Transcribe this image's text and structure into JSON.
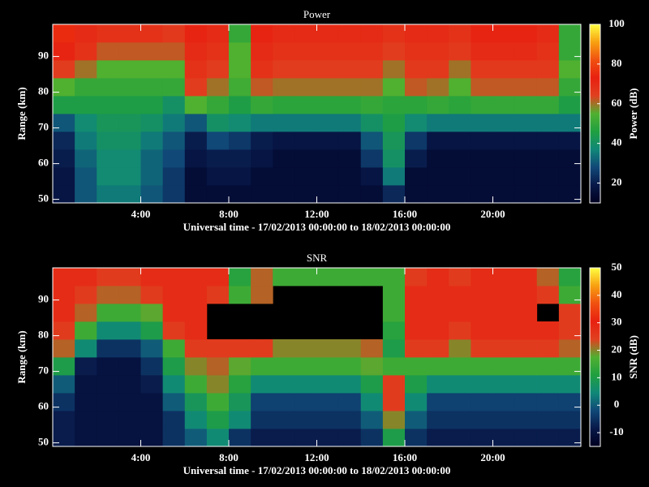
{
  "chart_data": [
    {
      "type": "heatmap",
      "title": "Power",
      "xlabel": "Universal time - 17/02/2013 00:00:00 to 18/02/2013 00:00:00",
      "ylabel": "Range (km)",
      "zlabel": "Power (dB)",
      "xlim": [
        0,
        24
      ],
      "xticks": [
        {
          "value": 4,
          "label": "4:00"
        },
        {
          "value": 8,
          "label": "8:00"
        },
        {
          "value": 12,
          "label": "12:00"
        },
        {
          "value": 16,
          "label": "16:00"
        },
        {
          "value": 20,
          "label": "20:00"
        }
      ],
      "ylim": [
        49,
        99
      ],
      "yticks": [
        50,
        60,
        70,
        80,
        90
      ],
      "zlim": [
        10,
        100
      ],
      "zticks": [
        20,
        40,
        60,
        80,
        100
      ],
      "colormap": [
        "#000020",
        "#081848",
        "#104878",
        "#108878",
        "#20a040",
        "#50b030",
        "#e04020",
        "#e82010",
        "#f05010",
        "#f8a010",
        "#ffff40"
      ],
      "x": [
        0.5,
        1.5,
        2.5,
        3.5,
        4.5,
        5.5,
        6.5,
        7.5,
        8.5,
        9.5,
        10.5,
        11.5,
        12.5,
        13.5,
        14.5,
        15.5,
        16.5,
        17.5,
        18.5,
        19.5,
        20.5,
        21.5,
        22.5,
        23.5
      ],
      "y": [
        51.5,
        56.5,
        61.5,
        66.5,
        71.5,
        76.5,
        81.5,
        86.5,
        91.5,
        96.5
      ],
      "values": [
        [
          18,
          30,
          35,
          35,
          30,
          25,
          15,
          15,
          15,
          15,
          15,
          15,
          15,
          15,
          15,
          22,
          15,
          15,
          15,
          15,
          15,
          15,
          15,
          15
        ],
        [
          18,
          30,
          38,
          38,
          32,
          25,
          15,
          18,
          18,
          15,
          15,
          15,
          15,
          15,
          18,
          35,
          15,
          15,
          15,
          15,
          15,
          15,
          15,
          15
        ],
        [
          20,
          32,
          38,
          38,
          32,
          28,
          18,
          20,
          20,
          18,
          15,
          15,
          15,
          15,
          25,
          40,
          20,
          15,
          15,
          15,
          15,
          15,
          15,
          15
        ],
        [
          22,
          35,
          40,
          40,
          35,
          30,
          20,
          28,
          25,
          20,
          18,
          18,
          18,
          18,
          30,
          42,
          25,
          18,
          18,
          18,
          18,
          18,
          18,
          18
        ],
        [
          30,
          38,
          42,
          42,
          40,
          35,
          30,
          40,
          38,
          35,
          35,
          35,
          35,
          35,
          40,
          45,
          38,
          35,
          35,
          35,
          35,
          35,
          35,
          35
        ],
        [
          45,
          45,
          45,
          45,
          45,
          40,
          55,
          50,
          45,
          50,
          48,
          48,
          48,
          48,
          50,
          48,
          48,
          50,
          48,
          50,
          50,
          50,
          50,
          45
        ],
        [
          55,
          50,
          50,
          50,
          50,
          50,
          65,
          60,
          52,
          62,
          60,
          60,
          60,
          60,
          60,
          55,
          62,
          60,
          55,
          62,
          62,
          62,
          62,
          50
        ],
        [
          65,
          60,
          55,
          55,
          55,
          55,
          68,
          65,
          55,
          68,
          65,
          65,
          65,
          65,
          65,
          60,
          66,
          66,
          60,
          66,
          66,
          66,
          66,
          55
        ],
        [
          72,
          68,
          62,
          62,
          62,
          62,
          70,
          68,
          55,
          70,
          68,
          68,
          68,
          68,
          68,
          65,
          68,
          68,
          66,
          70,
          70,
          70,
          68,
          50
        ],
        [
          75,
          70,
          68,
          68,
          68,
          66,
          72,
          70,
          50,
          72,
          70,
          70,
          70,
          70,
          70,
          68,
          70,
          70,
          68,
          72,
          72,
          72,
          70,
          50
        ]
      ]
    },
    {
      "type": "heatmap",
      "title": "SNR",
      "xlabel": "Universal time - 17/02/2013 00:00:00 to 18/02/2013 00:00:00",
      "ylabel": "Range (km)",
      "zlabel": "SNR (dB)",
      "xlim": [
        0,
        24
      ],
      "xticks": [
        {
          "value": 4,
          "label": "4:00"
        },
        {
          "value": 8,
          "label": "8:00"
        },
        {
          "value": 12,
          "label": "12:00"
        },
        {
          "value": 16,
          "label": "16:00"
        },
        {
          "value": 20,
          "label": "20:00"
        }
      ],
      "ylim": [
        49,
        99
      ],
      "yticks": [
        50,
        60,
        70,
        80,
        90
      ],
      "zlim": [
        -15,
        50
      ],
      "zticks": [
        -10,
        0,
        10,
        20,
        30,
        40,
        50
      ],
      "colormap": [
        "#000020",
        "#081848",
        "#104878",
        "#108878",
        "#20a040",
        "#50b030",
        "#e04020",
        "#e82010",
        "#f05010",
        "#f8a010",
        "#ffff40"
      ],
      "x": [
        0.5,
        1.5,
        2.5,
        3.5,
        4.5,
        5.5,
        6.5,
        7.5,
        8.5,
        9.5,
        10.5,
        11.5,
        12.5,
        13.5,
        14.5,
        15.5,
        16.5,
        17.5,
        18.5,
        19.5,
        20.5,
        21.5,
        22.5,
        23.5
      ],
      "y": [
        51.5,
        56.5,
        61.5,
        66.5,
        71.5,
        76.5,
        81.5,
        86.5,
        91.5,
        96.5
      ],
      "values": [
        [
          -8,
          -10,
          -10,
          -10,
          -10,
          -5,
          0,
          5,
          -5,
          -8,
          -8,
          -8,
          -8,
          -8,
          -5,
          10,
          -5,
          -8,
          -8,
          -8,
          -8,
          -8,
          -8,
          -8
        ],
        [
          -8,
          -10,
          -10,
          -10,
          -10,
          -5,
          5,
          10,
          5,
          -5,
          -5,
          -5,
          -5,
          -5,
          0,
          20,
          0,
          -5,
          -5,
          -5,
          -5,
          -5,
          -5,
          -5
        ],
        [
          -5,
          -10,
          -10,
          -10,
          -10,
          0,
          8,
          15,
          8,
          -3,
          -3,
          -3,
          -3,
          -3,
          5,
          25,
          5,
          -3,
          -3,
          -3,
          -3,
          -3,
          -3,
          -3
        ],
        [
          0,
          -10,
          -10,
          -10,
          -8,
          5,
          15,
          20,
          12,
          5,
          5,
          5,
          5,
          5,
          10,
          25,
          10,
          5,
          5,
          5,
          5,
          5,
          5,
          5
        ],
        [
          10,
          -8,
          -10,
          -10,
          -5,
          10,
          20,
          22,
          18,
          15,
          15,
          15,
          15,
          15,
          18,
          15,
          15,
          15,
          15,
          15,
          15,
          15,
          15,
          15
        ],
        [
          22,
          5,
          -5,
          -5,
          0,
          15,
          25,
          25,
          25,
          25,
          20,
          20,
          20,
          20,
          22,
          10,
          25,
          25,
          20,
          25,
          25,
          25,
          25,
          22
        ],
        [
          25,
          15,
          5,
          5,
          10,
          25,
          28,
          null,
          null,
          null,
          null,
          null,
          null,
          null,
          null,
          12,
          28,
          28,
          25,
          28,
          28,
          28,
          28,
          25
        ],
        [
          28,
          22,
          15,
          15,
          18,
          28,
          28,
          null,
          null,
          null,
          null,
          null,
          null,
          null,
          null,
          15,
          28,
          28,
          28,
          28,
          28,
          28,
          null,
          25
        ],
        [
          28,
          25,
          22,
          22,
          25,
          28,
          28,
          25,
          15,
          22,
          null,
          null,
          null,
          null,
          null,
          15,
          28,
          28,
          28,
          28,
          28,
          28,
          25,
          15
        ],
        [
          28,
          28,
          25,
          25,
          28,
          28,
          28,
          28,
          12,
          22,
          15,
          15,
          15,
          15,
          15,
          15,
          25,
          28,
          25,
          28,
          28,
          28,
          22,
          12
        ]
      ]
    }
  ]
}
